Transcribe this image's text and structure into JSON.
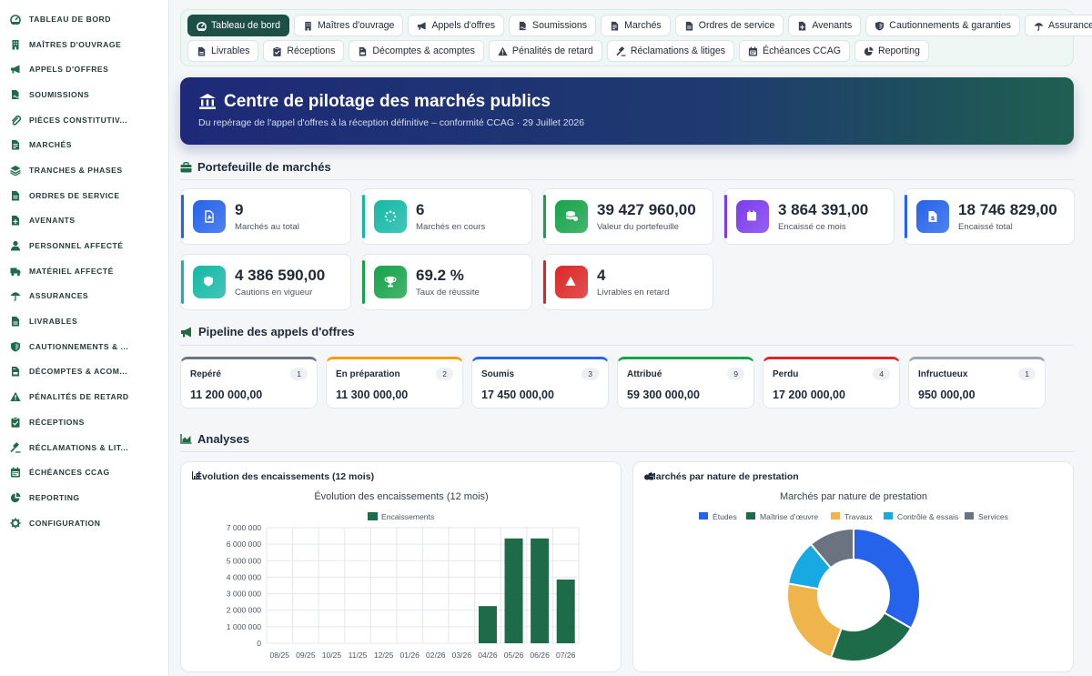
{
  "sidebar": {
    "items": [
      {
        "label": "Tableau de bord",
        "icon": "dashboard-icon"
      },
      {
        "label": "Maîtres d'ouvrage",
        "icon": "building-icon"
      },
      {
        "label": "Appels d'offres",
        "icon": "bullhorn-icon"
      },
      {
        "label": "Soumissions",
        "icon": "file-signature-icon"
      },
      {
        "label": "Pièces constitutiv...",
        "icon": "paperclip-icon"
      },
      {
        "label": "Marchés",
        "icon": "file-contract-icon"
      },
      {
        "label": "Tranches & phases",
        "icon": "layers-icon"
      },
      {
        "label": "Ordres de service",
        "icon": "file-alt-icon"
      },
      {
        "label": "Avenants",
        "icon": "file-plus-icon"
      },
      {
        "label": "Personnel affecté",
        "icon": "user-icon"
      },
      {
        "label": "Matériel affecté",
        "icon": "truck-icon"
      },
      {
        "label": "Assurances",
        "icon": "umbrella-icon"
      },
      {
        "label": "Livrables",
        "icon": "file-icon"
      },
      {
        "label": "Cautionnements & ...",
        "icon": "shield-icon"
      },
      {
        "label": "Décomptes & acom...",
        "icon": "invoice-icon"
      },
      {
        "label": "Pénalités de retard",
        "icon": "warning-icon"
      },
      {
        "label": "Réceptions",
        "icon": "clipboard-check-icon"
      },
      {
        "label": "Réclamations & lit...",
        "icon": "gavel-icon"
      },
      {
        "label": "Échéances CCAG",
        "icon": "calendar-icon"
      },
      {
        "label": "Reporting",
        "icon": "pie-chart-icon"
      },
      {
        "label": "Configuration",
        "icon": "gear-icon"
      }
    ]
  },
  "nav": {
    "row1": [
      {
        "label": "Tableau de bord",
        "icon": "dashboard-icon",
        "active": true
      },
      {
        "label": "Maîtres d'ouvrage",
        "icon": "building-icon"
      },
      {
        "label": "Appels d'offres",
        "icon": "bullhorn-icon"
      },
      {
        "label": "Soumissions",
        "icon": "file-signature-icon"
      },
      {
        "label": "Marchés",
        "icon": "file-contract-icon"
      },
      {
        "label": "Ordres de service",
        "icon": "file-alt-icon"
      },
      {
        "label": "Avenants",
        "icon": "file-plus-icon"
      },
      {
        "label": "Cautionnements & garanties",
        "icon": "shield-icon"
      },
      {
        "label": "Assurances",
        "icon": "umbrella-icon"
      }
    ],
    "row2": [
      {
        "label": "Livrables",
        "icon": "file-icon"
      },
      {
        "label": "Réceptions",
        "icon": "clipboard-check-icon"
      },
      {
        "label": "Décomptes & acomptes",
        "icon": "invoice-icon"
      },
      {
        "label": "Pénalités de retard",
        "icon": "warning-icon"
      },
      {
        "label": "Réclamations & litiges",
        "icon": "gavel-icon"
      },
      {
        "label": "Échéances CCAG",
        "icon": "calendar-icon"
      },
      {
        "label": "Reporting",
        "icon": "pie-chart-icon"
      }
    ]
  },
  "hero": {
    "title": "Centre de pilotage des marchés publics",
    "subtitle": "Du repérage de l'appel d'offres à la réception définitive – conformité CCAG · 29 Juillet 2026"
  },
  "portfolio": {
    "title": "Portefeuille de marchés",
    "kpis": [
      {
        "value": "9",
        "label": "Marchés au total",
        "color": "#2563eb",
        "icon": "file-pdf-icon"
      },
      {
        "value": "6",
        "label": "Marchés en cours",
        "color": "#14b8a6",
        "icon": "spinner-icon"
      },
      {
        "value": "39 427 960,00",
        "label": "Valeur du portefeuille",
        "color": "#16a34a",
        "icon": "coins-icon"
      },
      {
        "value": "3 864 391,00",
        "label": "Encaissé ce mois",
        "color": "#7c3aed",
        "icon": "calendar-icon"
      },
      {
        "value": "18 746 829,00",
        "label": "Encaissé total",
        "color": "#2563eb",
        "icon": "invoice-dollar-icon"
      },
      {
        "value": "4 386 590,00",
        "label": "Cautions en vigueur",
        "color": "#14b8a6",
        "icon": "shield-icon"
      },
      {
        "value": "69.2 %",
        "label": "Taux de réussite",
        "color": "#16a34a",
        "icon": "trophy-icon"
      },
      {
        "value": "4",
        "label": "Livrables en retard",
        "color": "#dc2626",
        "icon": "warning-icon"
      }
    ]
  },
  "pipeline": {
    "title": "Pipeline des appels d'offres",
    "stages": [
      {
        "label": "Repéré",
        "count": "1",
        "value": "11 200 000,00",
        "color": "#6b7280"
      },
      {
        "label": "En préparation",
        "count": "2",
        "value": "11 300 000,00",
        "color": "#f59e0b"
      },
      {
        "label": "Soumis",
        "count": "3",
        "value": "17 450 000,00",
        "color": "#2563eb"
      },
      {
        "label": "Attribué",
        "count": "9",
        "value": "59 300 000,00",
        "color": "#16a34a"
      },
      {
        "label": "Perdu",
        "count": "4",
        "value": "17 200 000,00",
        "color": "#dc2626"
      },
      {
        "label": "Infructueux",
        "count": "1",
        "value": "950 000,00",
        "color": "#9ca3af"
      }
    ]
  },
  "analyses": {
    "title": "Analyses",
    "bar_panel_title": "Évolution des encaissements (12 mois)",
    "pie_panel_title": "Marchés par nature de prestation"
  },
  "chart_data": [
    {
      "type": "bar",
      "title": "Évolution des encaissements (12 mois)",
      "categories": [
        "08/25",
        "09/25",
        "10/25",
        "11/25",
        "12/25",
        "01/26",
        "02/26",
        "03/26",
        "04/26",
        "05/26",
        "06/26",
        "07/26"
      ],
      "series": [
        {
          "name": "Encaissements",
          "color": "#1e6b4a",
          "values": [
            0,
            0,
            0,
            0,
            0,
            0,
            0,
            0,
            2250000,
            6350000,
            6350000,
            3860000
          ]
        }
      ],
      "ylim": [
        0,
        7000000
      ],
      "yticks": [
        "0",
        "1 000 000",
        "2 000 000",
        "3 000 000",
        "4 000 000",
        "5 000 000",
        "6 000 000",
        "7 000 000"
      ],
      "grid": true,
      "legend": "top"
    },
    {
      "type": "pie",
      "title": "Marchés par nature de prestation",
      "categories": [
        "Études",
        "Maîtrise d'œuvre",
        "Travaux",
        "Contrôle & essais",
        "Services"
      ],
      "colors": [
        "#2563eb",
        "#1e6b4a",
        "#f0b44c",
        "#17a9e1",
        "#6b7280"
      ],
      "values": [
        3,
        2,
        2,
        1,
        1
      ],
      "donut": true,
      "legend": "top"
    }
  ]
}
